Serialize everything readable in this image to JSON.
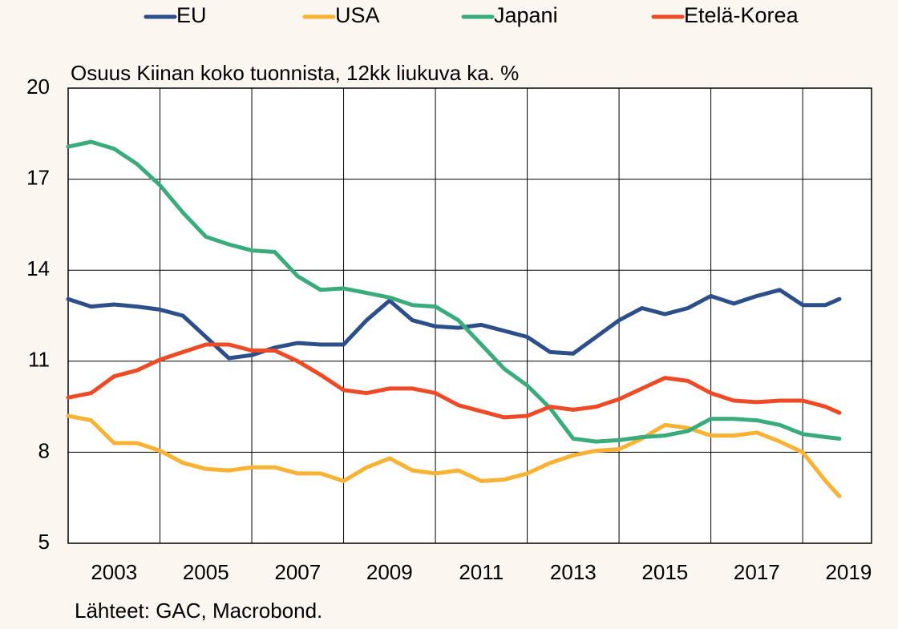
{
  "chart_data": {
    "type": "line",
    "subtitle": "Osuus Kiinan koko tuonnista, 12kk liukuva ka. %",
    "source": "Lähteet: GAC, Macrobond.",
    "x": [
      2002,
      2002.5,
      2003,
      2003.5,
      2004,
      2004.5,
      2005,
      2005.5,
      2006,
      2006.5,
      2007,
      2007.5,
      2008,
      2008.5,
      2009,
      2009.5,
      2010,
      2010.5,
      2011,
      2011.5,
      2012,
      2012.5,
      2013,
      2013.5,
      2014,
      2014.5,
      2015,
      2015.5,
      2016,
      2016.5,
      2017,
      2017.5,
      2018,
      2018.5,
      2018.8
    ],
    "series": [
      {
        "name": "EU",
        "color": "#2c4f8c",
        "values": [
          13.05,
          12.8,
          12.87,
          12.8,
          12.7,
          12.5,
          11.8,
          11.1,
          11.2,
          11.45,
          11.6,
          11.55,
          11.55,
          12.35,
          13.0,
          12.35,
          12.15,
          12.1,
          12.2,
          12.0,
          11.8,
          11.3,
          11.25,
          11.8,
          12.35,
          12.75,
          12.55,
          12.75,
          13.15,
          12.9,
          13.15,
          13.35,
          12.85,
          12.85,
          13.05
        ]
      },
      {
        "name": "USA",
        "color": "#f9b233",
        "values": [
          9.2,
          9.05,
          8.3,
          8.3,
          8.05,
          7.65,
          7.45,
          7.4,
          7.5,
          7.5,
          7.3,
          7.3,
          7.05,
          7.5,
          7.8,
          7.4,
          7.3,
          7.4,
          7.05,
          7.1,
          7.3,
          7.65,
          7.9,
          8.05,
          8.1,
          8.45,
          8.9,
          8.8,
          8.55,
          8.55,
          8.65,
          8.35,
          8.0,
          7.05,
          6.55
        ]
      },
      {
        "name": "Japani",
        "color": "#3aab7a",
        "values": [
          18.07,
          18.23,
          18.0,
          17.5,
          16.8,
          15.9,
          15.1,
          14.85,
          14.65,
          14.6,
          13.8,
          13.35,
          13.4,
          13.25,
          13.1,
          12.85,
          12.8,
          12.35,
          11.55,
          10.75,
          10.2,
          9.45,
          8.45,
          8.35,
          8.4,
          8.5,
          8.55,
          8.7,
          9.1,
          9.1,
          9.05,
          8.9,
          8.6,
          8.5,
          8.45
        ]
      },
      {
        "name": "Etelä-Korea",
        "color": "#ef4a26",
        "values": [
          9.8,
          9.95,
          10.5,
          10.7,
          11.05,
          11.3,
          11.55,
          11.55,
          11.35,
          11.35,
          11.0,
          10.55,
          10.05,
          9.95,
          10.1,
          10.1,
          9.95,
          9.55,
          9.35,
          9.15,
          9.2,
          9.5,
          9.4,
          9.5,
          9.75,
          10.1,
          10.45,
          10.35,
          9.95,
          9.7,
          9.65,
          9.7,
          9.7,
          9.5,
          9.3
        ]
      }
    ],
    "xlim": [
      2002,
      2019.5
    ],
    "xticks": [
      2003,
      2005,
      2007,
      2009,
      2011,
      2013,
      2015,
      2017,
      2019
    ],
    "xgrid": [
      2004,
      2006,
      2008,
      2010,
      2012,
      2014,
      2016,
      2018
    ],
    "ylim": [
      5,
      20
    ],
    "yticks": [
      5,
      8,
      11,
      14,
      17,
      20
    ],
    "grid": true,
    "legend": "top"
  }
}
